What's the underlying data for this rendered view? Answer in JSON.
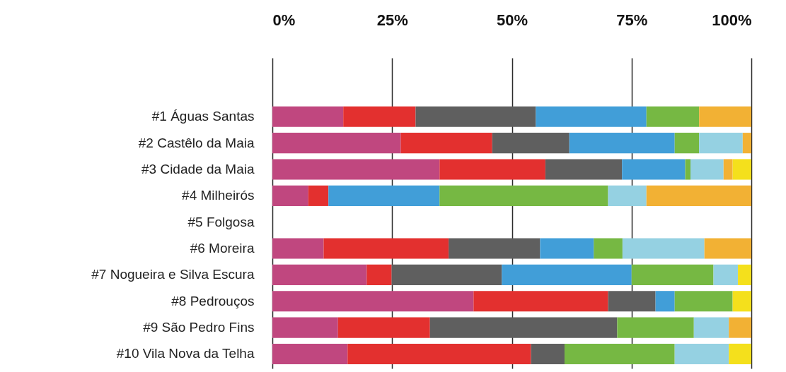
{
  "chart_data": {
    "type": "bar",
    "orientation": "horizontal",
    "stacked": true,
    "categories": [
      "#1 Águas Santas",
      "#2 Castêlo da Maia",
      "#3 Cidade da Maia",
      "#4 Milheirós",
      "#5 Folgosa",
      "#6 Moreira",
      "#7 Nogueira e Silva Escura",
      "#8 Pedrouços",
      "#9 São Pedro Fins",
      "#10 Vila Nova da Telha"
    ],
    "series": [
      {
        "color": "#c0477f",
        "values": [
          14.8,
          26.8,
          34.9,
          7.5,
          null,
          10.7,
          19.7,
          42.0,
          13.7,
          15.7
        ]
      },
      {
        "color": "#e3302f",
        "values": [
          15.1,
          19.1,
          22.1,
          4.2,
          null,
          26.1,
          5.2,
          28.1,
          19.2,
          38.3
        ]
      },
      {
        "color": "#5f5f5f",
        "values": [
          25.1,
          16.1,
          16.0,
          null,
          null,
          19.1,
          23.0,
          9.9,
          39.1,
          7.0
        ]
      },
      {
        "color": "#419ed8",
        "values": [
          23.1,
          22.0,
          13.2,
          23.2,
          null,
          11.2,
          27.1,
          4.0,
          null,
          null
        ]
      },
      {
        "color": "#76b843",
        "values": [
          11.0,
          5.1,
          1.1,
          35.2,
          null,
          6.0,
          17.1,
          12.1,
          16.0,
          23.0
        ]
      },
      {
        "color": "#95d1e2",
        "values": [
          null,
          9.1,
          6.9,
          8.0,
          null,
          17.1,
          5.1,
          null,
          7.3,
          11.3
        ]
      },
      {
        "color": "#f2b134",
        "values": [
          10.9,
          1.8,
          1.9,
          21.9,
          null,
          9.8,
          null,
          null,
          4.7,
          null
        ]
      },
      {
        "color": "#f4e01c",
        "values": [
          null,
          null,
          3.9,
          null,
          null,
          null,
          2.8,
          3.9,
          null,
          4.7
        ]
      }
    ],
    "xlim": [
      0,
      100
    ],
    "xticks": [
      {
        "value": 0,
        "label": "0%"
      },
      {
        "value": 25,
        "label": "25%"
      },
      {
        "value": 50,
        "label": "50%"
      },
      {
        "value": 75,
        "label": "75%"
      },
      {
        "value": 100,
        "label": "100%"
      }
    ],
    "grid": "x"
  }
}
